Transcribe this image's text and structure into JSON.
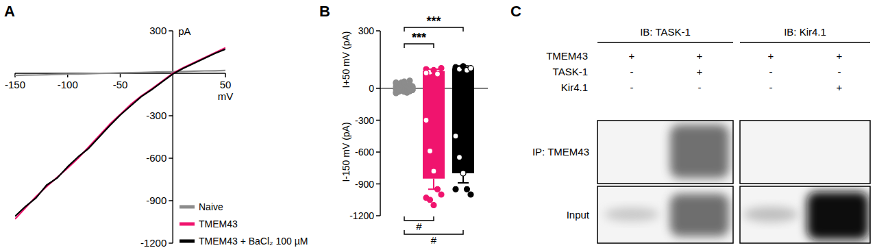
{
  "chart_data": [
    {
      "title": "A",
      "type": "line",
      "x": [
        -150,
        -140,
        -130,
        -120,
        -110,
        -100,
        -90,
        -80,
        -70,
        -60,
        -50,
        -40,
        -30,
        -20,
        -10,
        0,
        10,
        20,
        30,
        40,
        50
      ],
      "series": [
        {
          "name": "Naive",
          "color": "#8c8c8c",
          "values": [
            -15,
            -13,
            -12,
            -10,
            -8,
            -6,
            -5,
            -3,
            -1,
            1,
            3,
            4,
            6,
            8,
            10,
            11,
            13,
            15,
            17,
            18,
            20
          ]
        },
        {
          "name": "TMEM43",
          "color": "#f0146e",
          "values": [
            -1030,
            -950,
            -870,
            -800,
            -735,
            -670,
            -600,
            -520,
            -440,
            -360,
            -290,
            -220,
            -160,
            -110,
            -55,
            0,
            40,
            75,
            110,
            145,
            180
          ]
        },
        {
          "name": "TMEM43 + BaCl₂ 100 µM",
          "color": "#000000",
          "values": [
            -1010,
            -940,
            -880,
            -790,
            -740,
            -660,
            -590,
            -530,
            -450,
            -370,
            -295,
            -230,
            -165,
            -115,
            -60,
            -5,
            35,
            70,
            105,
            140,
            170
          ]
        }
      ],
      "xlim": [
        -150,
        50
      ],
      "xticks": [
        -150,
        -100,
        -50,
        50
      ],
      "ylim": [
        -1200,
        300
      ],
      "yticks": [
        300,
        -300,
        -600,
        -900,
        -1200
      ],
      "x_label": "mV",
      "y_label": "pA",
      "legend": "lower right"
    },
    {
      "title": "B",
      "type": "bar",
      "categories": [
        null,
        null,
        null
      ],
      "colors": [
        "#8c8c8c",
        "#f0146e",
        "#000000"
      ],
      "series": [
        {
          "values": [
            16,
            90,
            105
          ],
          "errors": [
            3,
            10,
            12
          ],
          "points": [
            [
              10,
              5,
              30,
              20,
              0,
              40,
              5,
              25,
              15,
              5,
              35,
              0,
              20,
              10,
              30,
              0,
              15,
              25,
              10,
              20
            ],
            [
              100,
              85,
              95,
              75,
              105,
              80
            ],
            [
              110,
              100,
              115,
              95,
              105
            ]
          ]
        },
        {
          "axis": "y2",
          "values": [
            -21.5,
            -850,
            -800
          ],
          "errors": [
            3,
            100,
            90
          ],
          "points": [
            [
              -10,
              -30,
              -20,
              -5,
              -40,
              -25,
              -15,
              -35,
              -20,
              -10,
              -30,
              -5,
              -25,
              -15,
              -45,
              -20,
              -10,
              -30,
              -25,
              -15
            ],
            [
              -300,
              -590,
              -780,
              -950,
              -1000,
              -1030,
              -1050,
              -1100
            ],
            [
              -450,
              -650,
              -800,
              -950,
              -1000,
              -950
            ]
          ]
        }
      ],
      "ylim": [
        0,
        300
      ],
      "yticks": [
        0,
        300
      ],
      "y2lim": [
        -1200,
        0
      ],
      "y2ticks": [
        -300,
        -600,
        -900,
        -1200
      ],
      "y_label": "I+50 mV (pA)",
      "y2_label": "I-150 mV (pA)",
      "annotations": [
        {
          "text": "***",
          "between": [
            0,
            1
          ],
          "position": "top"
        },
        {
          "text": "***",
          "between": [
            0,
            2
          ],
          "position": "top"
        },
        {
          "text": "#",
          "between": [
            0,
            1
          ],
          "position": "bottom"
        },
        {
          "text": "#",
          "between": [
            0,
            2
          ],
          "position": "bottom"
        }
      ]
    }
  ],
  "blot": {
    "title": "C",
    "groups": [
      "IB: TASK-1",
      "IB: Kir4.1"
    ],
    "rows": [
      {
        "label": "TMEM43",
        "signs": [
          "+",
          "+",
          "+",
          "+"
        ]
      },
      {
        "label": "TASK-1",
        "signs": [
          "-",
          "+",
          "-",
          "-"
        ]
      },
      {
        "label": "Kir4.1",
        "signs": [
          "-",
          "-",
          "-",
          "+"
        ]
      }
    ],
    "panels": [
      "IP: TMEM43",
      "Input"
    ]
  }
}
